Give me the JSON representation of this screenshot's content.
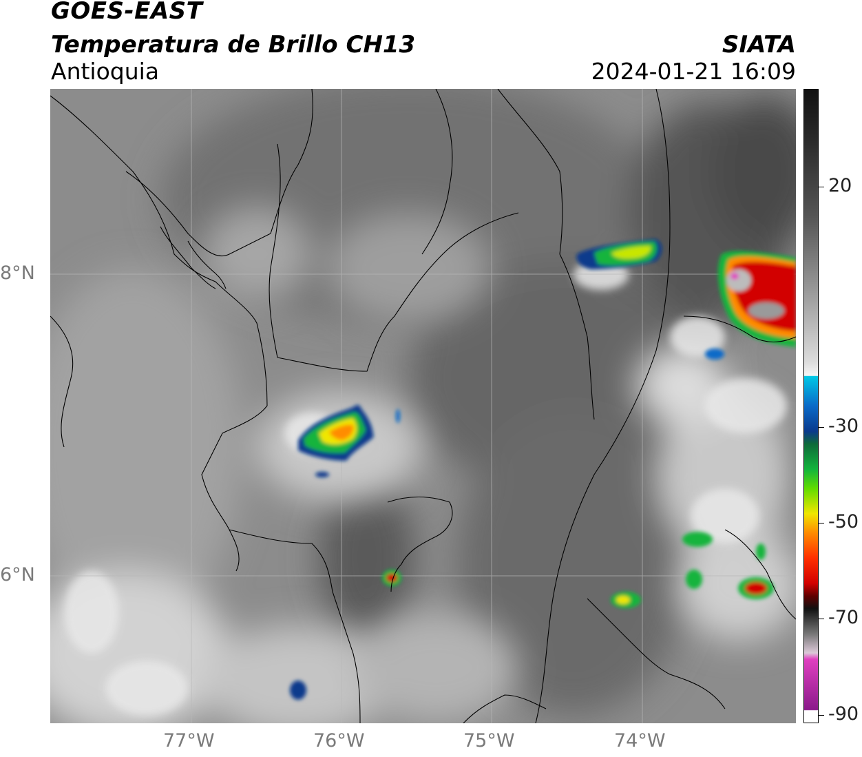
{
  "header": {
    "satellite": "GOES-EAST",
    "product": "Temperatura de Brillo CH13",
    "region": "Antioquia",
    "agency": "SIATA",
    "datetime": "2024-01-21 16:09"
  },
  "map": {
    "lon_ticks": [
      "77°W",
      "76°W",
      "75°W",
      "74°W"
    ],
    "lat_ticks": [
      "8°N",
      "6°N"
    ],
    "gridlines": true
  },
  "colorbar": {
    "ticks": [
      "20",
      "-30",
      "-50",
      "-70",
      "-90"
    ],
    "colors": {
      "black": "#111111",
      "gray": "#9a9a9a",
      "white": "#f2f2f2",
      "cyan": "#00c8e6",
      "blue": "#0a3a8c",
      "green": "#12b43c",
      "yellow": "#f0e600",
      "orange": "#ff8c00",
      "red": "#d20000",
      "magenta": "#e040c0",
      "purple": "#8a1a8a"
    }
  }
}
